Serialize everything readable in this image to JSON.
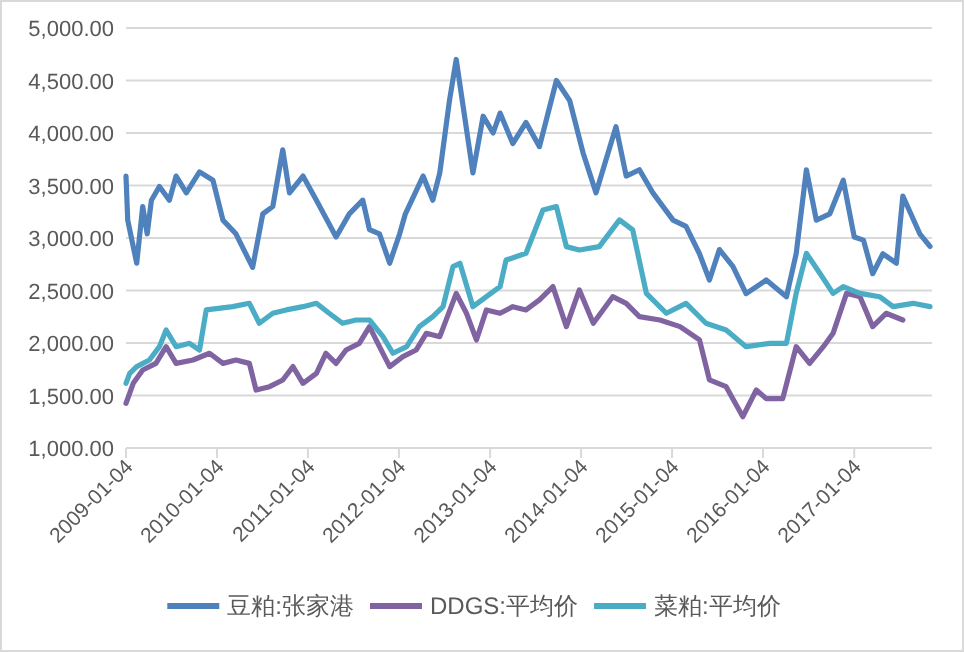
{
  "chart_data": {
    "type": "line",
    "xlim": [
      "2009-01-04",
      "2017-11-12"
    ],
    "ylim": [
      1000,
      5000
    ],
    "xticks": [
      {
        "value": "2009-01-04",
        "label": "2009-01-04"
      },
      {
        "value": "2010-01-04",
        "label": "2010-01-04"
      },
      {
        "value": "2011-01-04",
        "label": "2011-01-04"
      },
      {
        "value": "2012-01-04",
        "label": "2012-01-04"
      },
      {
        "value": "2013-01-04",
        "label": "2013-01-04"
      },
      {
        "value": "2014-01-04",
        "label": "2014-01-04"
      },
      {
        "value": "2015-01-04",
        "label": "2015-01-04"
      },
      {
        "value": "2016-01-04",
        "label": "2016-01-04"
      },
      {
        "value": "2017-01-04",
        "label": "2017-01-04"
      }
    ],
    "yticks": [
      {
        "value": 1000,
        "label": "1,000.00"
      },
      {
        "value": 1500,
        "label": "1,500.00"
      },
      {
        "value": 2000,
        "label": "2,000.00"
      },
      {
        "value": 2500,
        "label": "2,500.00"
      },
      {
        "value": 3000,
        "label": "3,000.00"
      },
      {
        "value": 3500,
        "label": "3,500.00"
      },
      {
        "value": 4000,
        "label": "4,000.00"
      },
      {
        "value": 4500,
        "label": "4,500.00"
      },
      {
        "value": 5000,
        "label": "5,000.00"
      }
    ],
    "grid": "y",
    "legend": "bottom",
    "marker": "none",
    "line_style": "solid",
    "series": [
      {
        "name": "豆粕:张家港",
        "color": "#4f81bd",
        "x": [
          "2009-01-04",
          "2009-01-11",
          "2009-02-16",
          "2009-03-12",
          "2009-03-30",
          "2009-04-16",
          "2009-05-18",
          "2009-06-27",
          "2009-07-24",
          "2009-09-03",
          "2009-10-26",
          "2009-12-19",
          "2010-01-28",
          "2010-03-21",
          "2010-05-27",
          "2010-07-07",
          "2010-08-16",
          "2010-09-25",
          "2010-10-22",
          "2010-12-15",
          "2011-02-07",
          "2011-04-27",
          "2011-06-19",
          "2011-08-12",
          "2011-09-08",
          "2011-10-18",
          "2011-11-28",
          "2012-01-07",
          "2012-01-30",
          "2012-04-10",
          "2012-05-19",
          "2012-06-16",
          "2012-07-25",
          "2012-08-21",
          "2012-09-18",
          "2012-10-27",
          "2012-12-07",
          "2013-01-16",
          "2013-02-13",
          "2013-04-05",
          "2013-05-28",
          "2013-07-21",
          "2013-09-27",
          "2013-11-19",
          "2014-01-12",
          "2014-03-05",
          "2014-05-24",
          "2014-07-04",
          "2014-08-26",
          "2014-10-19",
          "2015-01-08",
          "2015-03-01",
          "2015-04-24",
          "2015-06-03",
          "2015-07-13",
          "2015-09-05",
          "2015-10-28",
          "2016-01-17",
          "2016-04-07",
          "2016-05-16",
          "2016-06-26",
          "2016-08-05",
          "2016-09-28",
          "2016-11-21",
          "2017-01-04",
          "2017-02-10",
          "2017-03-19",
          "2017-04-29",
          "2017-06-22",
          "2017-07-18",
          "2017-09-24",
          "2017-11-04"
        ],
        "values": [
          3590,
          3170,
          2760,
          3300,
          3040,
          3360,
          3490,
          3360,
          3590,
          3430,
          3630,
          3550,
          3170,
          3040,
          2720,
          3230,
          3300,
          3840,
          3430,
          3590,
          3360,
          3010,
          3230,
          3360,
          3080,
          3040,
          2760,
          3040,
          3230,
          3590,
          3360,
          3620,
          4310,
          4700,
          4250,
          3620,
          4160,
          4000,
          4190,
          3900,
          4100,
          3870,
          4500,
          4310,
          3810,
          3430,
          4060,
          3590,
          3650,
          3430,
          3170,
          3110,
          2850,
          2600,
          2890,
          2730,
          2470,
          2600,
          2440,
          2850,
          3650,
          3170,
          3230,
          3550,
          3010,
          2980,
          2660,
          2850,
          2760,
          3400,
          3040,
          2920
        ]
      },
      {
        "name": "DDGS:平均价",
        "color": "#8064a2",
        "x": [
          "2009-01-04",
          "2009-02-02",
          "2009-03-12",
          "2009-05-04",
          "2009-06-14",
          "2009-07-24",
          "2009-09-30",
          "2009-12-05",
          "2010-01-28",
          "2010-03-21",
          "2010-05-14",
          "2010-06-10",
          "2010-08-03",
          "2010-09-25",
          "2010-11-05",
          "2010-12-15",
          "2011-02-07",
          "2011-03-17",
          "2011-04-27",
          "2011-06-06",
          "2011-07-29",
          "2011-09-08",
          "2011-10-18",
          "2011-11-28",
          "2012-01-20",
          "2012-03-13",
          "2012-04-23",
          "2012-06-16",
          "2012-08-21",
          "2012-10-01",
          "2012-11-10",
          "2012-12-20",
          "2013-02-13",
          "2013-04-05",
          "2013-05-28",
          "2013-07-21",
          "2013-09-13",
          "2013-11-06",
          "2013-12-28",
          "2014-02-22",
          "2014-05-11",
          "2014-07-04",
          "2014-08-26",
          "2014-11-16",
          "2015-02-05",
          "2015-04-24",
          "2015-06-03",
          "2015-08-09",
          "2015-10-15",
          "2015-12-08",
          "2016-01-17",
          "2016-03-23",
          "2016-05-16",
          "2016-07-09",
          "2016-09-02",
          "2016-10-11",
          "2016-12-04",
          "2017-01-27",
          "2017-03-19",
          "2017-05-12",
          "2017-07-18"
        ],
        "values": [
          1425,
          1616,
          1743,
          1806,
          1965,
          1806,
          1838,
          1902,
          1806,
          1838,
          1806,
          1552,
          1584,
          1648,
          1775,
          1616,
          1711,
          1902,
          1806,
          1933,
          1997,
          2156,
          1965,
          1775,
          1870,
          1933,
          2092,
          2060,
          2473,
          2283,
          2029,
          2315,
          2283,
          2346,
          2315,
          2410,
          2537,
          2156,
          2505,
          2188,
          2441,
          2378,
          2251,
          2219,
          2156,
          2029,
          1648,
          1584,
          1298,
          1552,
          1470,
          1470,
          1965,
          1806,
          1965,
          2092,
          2473,
          2441,
          2156,
          2283,
          2219
        ]
      },
      {
        "name": "菜粕:平均价",
        "color": "#4bacc6",
        "x": [
          "2009-01-04",
          "2009-01-19",
          "2009-02-16",
          "2009-04-08",
          "2009-05-18",
          "2009-06-14",
          "2009-07-24",
          "2009-09-16",
          "2009-10-26",
          "2009-11-22",
          "2010-03-08",
          "2010-05-14",
          "2010-06-23",
          "2010-08-16",
          "2010-10-09",
          "2010-12-15",
          "2011-02-07",
          "2011-03-30",
          "2011-05-23",
          "2011-07-16",
          "2011-09-08",
          "2011-11-01",
          "2011-12-11",
          "2012-02-04",
          "2012-03-26",
          "2012-05-19",
          "2012-06-29",
          "2012-08-08",
          "2012-09-05",
          "2012-10-27",
          "2012-12-20",
          "2013-02-13",
          "2013-03-09",
          "2013-05-28",
          "2013-08-04",
          "2013-09-27",
          "2013-11-06",
          "2013-12-28",
          "2014-03-18",
          "2014-06-07",
          "2014-07-30",
          "2014-09-23",
          "2014-12-12",
          "2015-03-01",
          "2015-05-20",
          "2015-08-09",
          "2015-10-28",
          "2016-02-01",
          "2016-04-07",
          "2016-05-16",
          "2016-06-26",
          "2016-08-19",
          "2016-10-11",
          "2016-11-21",
          "2017-01-27",
          "2017-04-16",
          "2017-06-09",
          "2017-08-28",
          "2017-11-04"
        ],
        "values": [
          1616,
          1711,
          1775,
          1838,
          1965,
          2124,
          1965,
          1997,
          1933,
          2315,
          2346,
          2378,
          2188,
          2283,
          2315,
          2346,
          2378,
          2283,
          2188,
          2219,
          2219,
          2060,
          1902,
          1965,
          2156,
          2251,
          2346,
          2727,
          2759,
          2346,
          2441,
          2537,
          2790,
          2854,
          3267,
          3299,
          2918,
          2886,
          2918,
          3172,
          3077,
          2473,
          2283,
          2378,
          2188,
          2124,
          1965,
          1997,
          1997,
          2473,
          2854,
          2664,
          2473,
          2537,
          2473,
          2441,
          2346,
          2378,
          2346
        ]
      }
    ]
  }
}
